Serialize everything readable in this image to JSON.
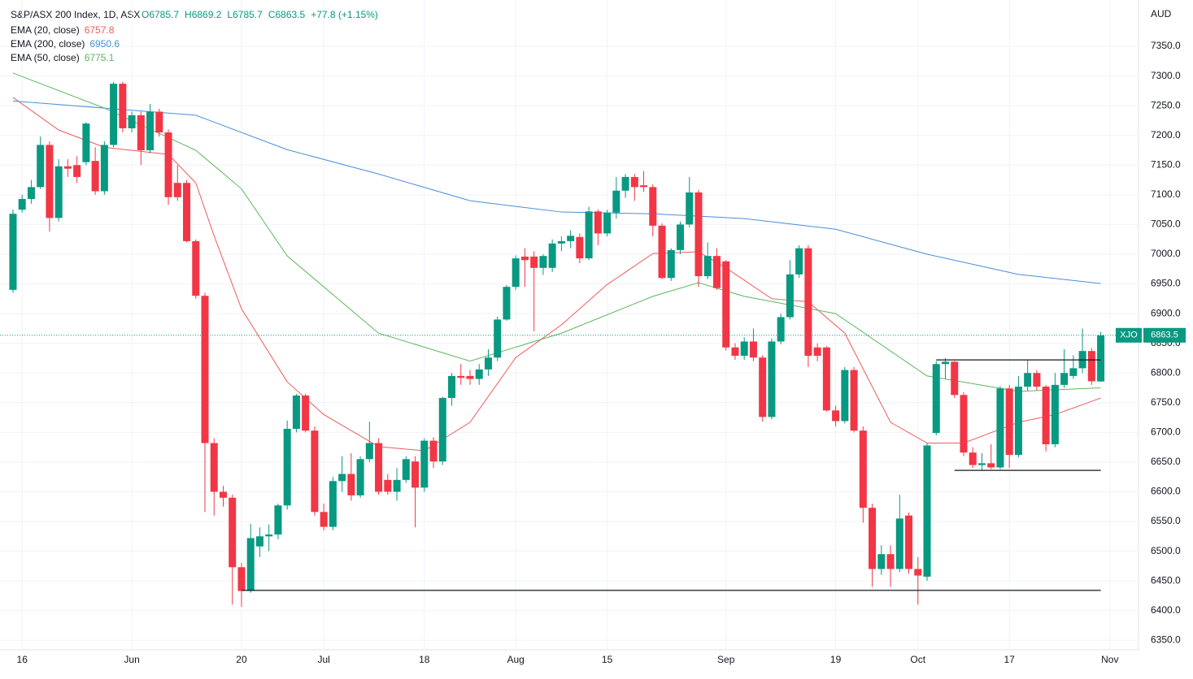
{
  "chart_data": {
    "type": "candlestick",
    "title": "S&P/ASX 200 Index, 1D, ASX",
    "ohlc_header": [
      "O6785.7",
      "H6869.2",
      "L6785.7",
      "C6863.5",
      "+77.8 (+1.15%)"
    ],
    "currency": "AUD",
    "symbol": "XJO",
    "last_price": 6863.5,
    "last_price_label": "6863.5",
    "up_color": "#089981",
    "down_color": "#f23645",
    "xlim": [
      -1.42,
      123.13
    ],
    "ylim": [
      6334,
      7428
    ],
    "xticks": [
      {
        "value": 1,
        "label": "16"
      },
      {
        "value": 13,
        "label": "Jun"
      },
      {
        "value": 25,
        "label": "20"
      },
      {
        "value": 34,
        "label": "Jul"
      },
      {
        "value": 45,
        "label": "18"
      },
      {
        "value": 55,
        "label": "Aug"
      },
      {
        "value": 65,
        "label": "15"
      },
      {
        "value": 78,
        "label": "Sep"
      },
      {
        "value": 90,
        "label": "19"
      },
      {
        "value": 99,
        "label": "Oct"
      },
      {
        "value": 109,
        "label": "17"
      },
      {
        "value": 120,
        "label": "Nov"
      }
    ],
    "yticks": [
      {
        "value": 6350,
        "label": "6350.0"
      },
      {
        "value": 6400,
        "label": "6400.0"
      },
      {
        "value": 6450,
        "label": "6450.0"
      },
      {
        "value": 6500,
        "label": "6500.0"
      },
      {
        "value": 6550,
        "label": "6550.0"
      },
      {
        "value": 6600,
        "label": "6600.0"
      },
      {
        "value": 6650,
        "label": "6650.0"
      },
      {
        "value": 6700,
        "label": "6700.0"
      },
      {
        "value": 6750,
        "label": "6750.0"
      },
      {
        "value": 6800,
        "label": "6800.0"
      },
      {
        "value": 6850,
        "label": "6850.0"
      },
      {
        "value": 6900,
        "label": "6900.0"
      },
      {
        "value": 6950,
        "label": "6950.0"
      },
      {
        "value": 7000,
        "label": "7000.0"
      },
      {
        "value": 7050,
        "label": "7050.0"
      },
      {
        "value": 7100,
        "label": "7100.0"
      },
      {
        "value": 7150,
        "label": "7150.0"
      },
      {
        "value": 7200,
        "label": "7200.0"
      },
      {
        "value": 7250,
        "label": "7250.0"
      },
      {
        "value": 7300,
        "label": "7300.0"
      },
      {
        "value": 7350,
        "label": "7350.0"
      }
    ],
    "ohlc": [
      [
        6940,
        7075,
        6935,
        7068
      ],
      [
        7075,
        7100,
        7070,
        7093
      ],
      [
        7093,
        7125,
        7085,
        7113
      ],
      [
        7113,
        7198,
        7110,
        7184
      ],
      [
        7184,
        7190,
        7038,
        7061
      ],
      [
        7061,
        7160,
        7055,
        7148
      ],
      [
        7148,
        7160,
        7130,
        7144
      ],
      [
        7150,
        7165,
        7120,
        7130
      ],
      [
        7155,
        7222,
        7150,
        7220
      ],
      [
        7157,
        7180,
        7100,
        7106
      ],
      [
        7106,
        7190,
        7100,
        7184
      ],
      [
        7184,
        7290,
        7180,
        7287
      ],
      [
        7287,
        7290,
        7205,
        7212
      ],
      [
        7212,
        7240,
        7205,
        7234
      ],
      [
        7234,
        7240,
        7150,
        7175
      ],
      [
        7175,
        7253,
        7170,
        7240
      ],
      [
        7240,
        7245,
        7198,
        7205
      ],
      [
        7205,
        7210,
        7083,
        7096
      ],
      [
        7120,
        7150,
        7090,
        7096
      ],
      [
        7120,
        7125,
        7020,
        7022
      ],
      [
        7022,
        7025,
        6925,
        6930
      ],
      [
        6930,
        6935,
        6566,
        6682
      ],
      [
        6682,
        6690,
        6560,
        6600
      ],
      [
        6600,
        6610,
        6575,
        6590
      ],
      [
        6590,
        6595,
        6410,
        6473
      ],
      [
        6473,
        6480,
        6406,
        6433
      ],
      [
        6433,
        6546,
        6430,
        6522
      ],
      [
        6508,
        6540,
        6490,
        6525
      ],
      [
        6525,
        6545,
        6500,
        6528
      ],
      [
        6528,
        6580,
        6520,
        6577
      ],
      [
        6577,
        6720,
        6570,
        6706
      ],
      [
        6706,
        6765,
        6700,
        6762
      ],
      [
        6762,
        6765,
        6700,
        6703
      ],
      [
        6703,
        6710,
        6560,
        6566
      ],
      [
        6566,
        6580,
        6535,
        6541
      ],
      [
        6541,
        6625,
        6535,
        6618
      ],
      [
        6618,
        6660,
        6600,
        6630
      ],
      [
        6630,
        6665,
        6585,
        6594
      ],
      [
        6594,
        6660,
        6590,
        6655
      ],
      [
        6655,
        6718,
        6650,
        6682
      ],
      [
        6682,
        6690,
        6595,
        6600
      ],
      [
        6620,
        6630,
        6595,
        6600
      ],
      [
        6600,
        6640,
        6585,
        6620
      ],
      [
        6620,
        6660,
        6615,
        6655
      ],
      [
        6651,
        6660,
        6540,
        6607
      ],
      [
        6607,
        6690,
        6600,
        6686
      ],
      [
        6686,
        6692,
        6640,
        6651
      ],
      [
        6651,
        6760,
        6645,
        6758
      ],
      [
        6758,
        6800,
        6745,
        6795
      ],
      [
        6795,
        6815,
        6780,
        6792
      ],
      [
        6795,
        6805,
        6780,
        6790
      ],
      [
        6790,
        6815,
        6780,
        6806
      ],
      [
        6806,
        6840,
        6795,
        6826
      ],
      [
        6826,
        6895,
        6820,
        6890
      ],
      [
        6890,
        6948,
        6888,
        6945
      ],
      [
        6945,
        6998,
        6940,
        6993
      ],
      [
        6996,
        7010,
        6945,
        6990
      ],
      [
        6996,
        7005,
        6870,
        6977
      ],
      [
        6977,
        7000,
        6965,
        6997
      ],
      [
        6977,
        7025,
        6970,
        7018
      ],
      [
        7018,
        7030,
        7005,
        7022
      ],
      [
        7022,
        7040,
        7010,
        7031
      ],
      [
        7029,
        7035,
        6985,
        6993
      ],
      [
        6993,
        7080,
        6990,
        7072
      ],
      [
        7072,
        7075,
        7015,
        7035
      ],
      [
        7035,
        7075,
        7030,
        7070
      ],
      [
        7070,
        7130,
        7060,
        7107
      ],
      [
        7107,
        7135,
        7095,
        7130
      ],
      [
        7130,
        7135,
        7090,
        7113
      ],
      [
        7116,
        7140,
        7105,
        7113
      ],
      [
        7113,
        7118,
        7030,
        7048
      ],
      [
        7048,
        7052,
        6958,
        6960
      ],
      [
        6960,
        7010,
        6955,
        7007
      ],
      [
        7007,
        7055,
        7000,
        7050
      ],
      [
        7050,
        7130,
        7045,
        7104
      ],
      [
        7104,
        7108,
        6945,
        6963
      ],
      [
        6963,
        7020,
        6958,
        6997
      ],
      [
        6997,
        7010,
        6940,
        6943
      ],
      [
        6988,
        6990,
        6838,
        6843
      ],
      [
        6843,
        6850,
        6822,
        6829
      ],
      [
        6829,
        6860,
        6822,
        6853
      ],
      [
        6853,
        6875,
        6820,
        6826
      ],
      [
        6826,
        6830,
        6718,
        6726
      ],
      [
        6726,
        6858,
        6722,
        6853
      ],
      [
        6853,
        6900,
        6848,
        6894
      ],
      [
        6894,
        6990,
        6890,
        6966
      ],
      [
        6966,
        7015,
        6960,
        7010
      ],
      [
        7010,
        7015,
        6810,
        6829
      ],
      [
        6843,
        6850,
        6820,
        6829
      ],
      [
        6843,
        6845,
        6735,
        6737
      ],
      [
        6737,
        6745,
        6710,
        6719
      ],
      [
        6719,
        6810,
        6715,
        6805
      ],
      [
        6805,
        6810,
        6700,
        6703
      ],
      [
        6703,
        6710,
        6548,
        6573
      ],
      [
        6573,
        6580,
        6440,
        6470
      ],
      [
        6470,
        6510,
        6460,
        6495
      ],
      [
        6495,
        6510,
        6440,
        6470
      ],
      [
        6470,
        6595,
        6465,
        6555
      ],
      [
        6560,
        6565,
        6462,
        6470
      ],
      [
        6470,
        6490,
        6410,
        6459
      ],
      [
        6457,
        6682,
        6450,
        6678
      ],
      [
        6699,
        6820,
        6695,
        6815
      ],
      [
        6815,
        6825,
        6790,
        6819
      ],
      [
        6819,
        6820,
        6758,
        6763
      ],
      [
        6763,
        6768,
        6660,
        6666
      ],
      [
        6666,
        6675,
        6640,
        6645
      ],
      [
        6645,
        6665,
        6635,
        6648
      ],
      [
        6648,
        6680,
        6638,
        6641
      ],
      [
        6641,
        6778,
        6638,
        6774
      ],
      [
        6774,
        6780,
        6640,
        6662
      ],
      [
        6662,
        6795,
        6658,
        6777
      ],
      [
        6777,
        6822,
        6770,
        6800
      ],
      [
        6800,
        6805,
        6770,
        6777
      ],
      [
        6777,
        6780,
        6668,
        6680
      ],
      [
        6680,
        6800,
        6675,
        6780
      ],
      [
        6780,
        6840,
        6775,
        6800
      ],
      [
        6795,
        6830,
        6790,
        6808
      ],
      [
        6808,
        6875,
        6800,
        6837
      ],
      [
        6837,
        6842,
        6780,
        6786
      ],
      [
        6785.7,
        6869.2,
        6785.7,
        6863.5
      ]
    ],
    "series": [
      {
        "name": "EMA (20, close)",
        "last_label": "6757.8",
        "color": "#f05b5b",
        "x": [
          0,
          5,
          10,
          17,
          20,
          22,
          25,
          30,
          34,
          40,
          45,
          50,
          55,
          60,
          65,
          70,
          75,
          78,
          83,
          87,
          91,
          96,
          100,
          104,
          110,
          114,
          119
        ],
        "values": [
          7264,
          7209,
          7180,
          7168,
          7120,
          7031,
          6908,
          6785,
          6730,
          6676,
          6669,
          6717,
          6826,
          6881,
          6949,
          7001,
          7004,
          6977,
          6925,
          6920,
          6867,
          6717,
          6682,
          6682,
          6717,
          6730,
          6757.8
        ]
      },
      {
        "name": "EMA (200, close)",
        "last_label": "6950.6",
        "color": "#4a8ed8",
        "x": [
          0,
          10,
          20,
          30,
          40,
          50,
          60,
          70,
          80,
          90,
          100,
          110,
          119
        ],
        "values": [
          7258,
          7246,
          7234,
          7176,
          7135,
          7090,
          7071,
          7068,
          7060,
          7042,
          7000,
          6966,
          6950.6
        ]
      },
      {
        "name": "EMA (50, close)",
        "last_label": "6775.1",
        "color": "#5cb85c",
        "x": [
          0,
          10,
          20,
          25,
          30,
          40,
          50,
          60,
          70,
          75,
          80,
          90,
          100,
          110,
          119
        ],
        "values": [
          7305,
          7246,
          7175,
          7110,
          6997,
          6867,
          6820,
          6867,
          6929,
          6952,
          6929,
          6900,
          6795,
          6769,
          6775.1
        ]
      }
    ],
    "levels": [
      {
        "x": [
          25,
          119
        ],
        "y": 6434
      },
      {
        "x": [
          101,
          119
        ],
        "y": 6822
      },
      {
        "x": [
          103,
          119
        ],
        "y": 6636
      }
    ]
  }
}
